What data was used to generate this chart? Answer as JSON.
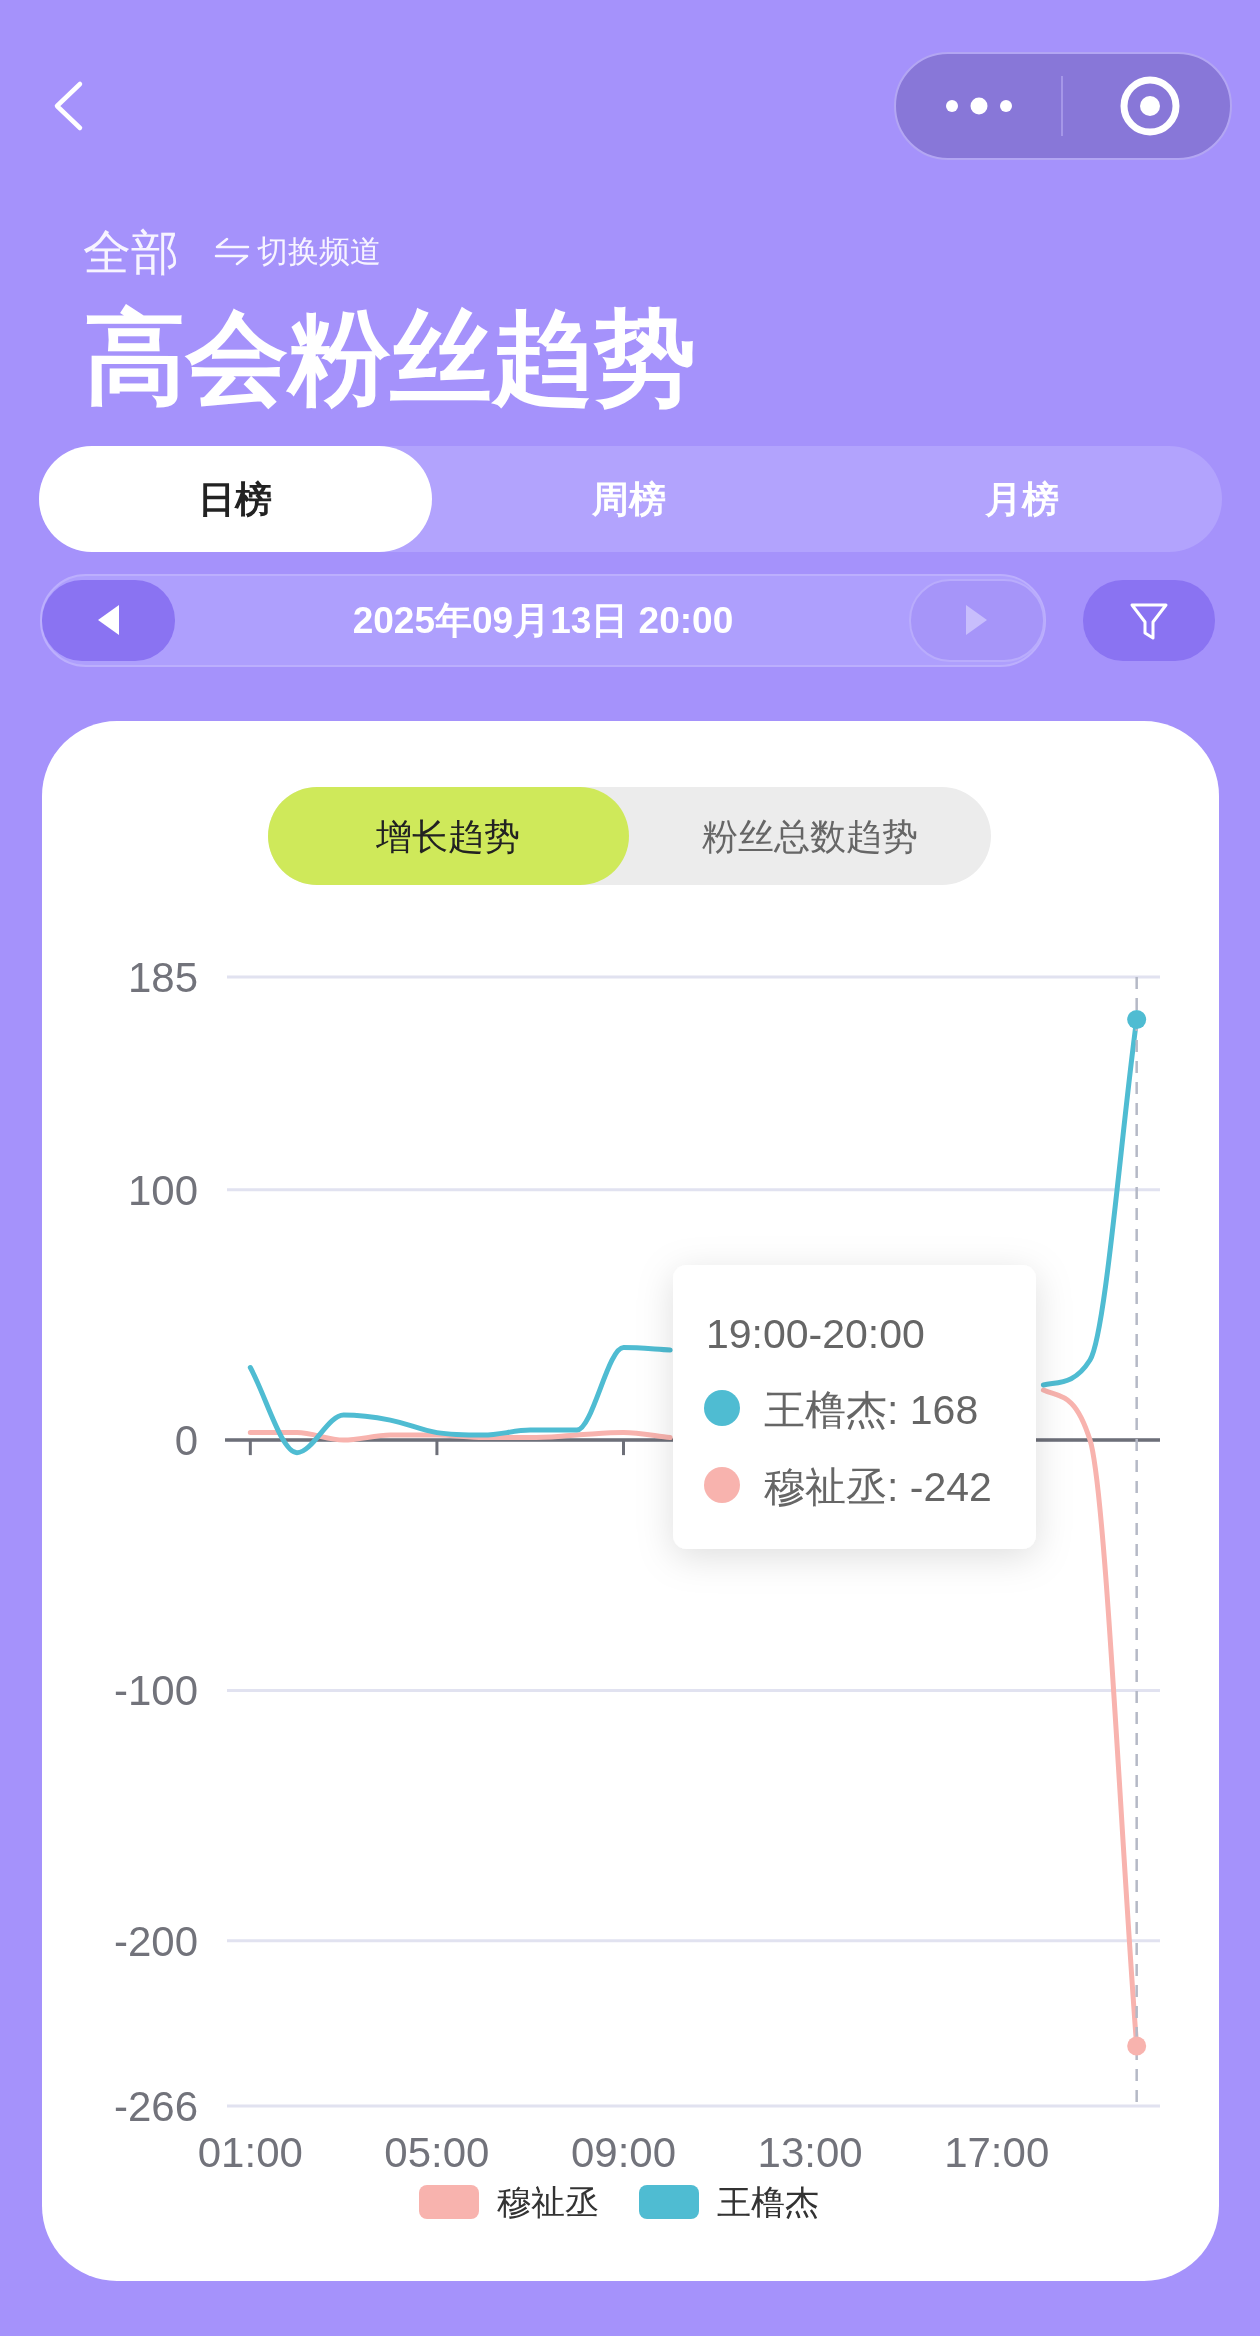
{
  "chart_data": {
    "type": "line",
    "title": "高会粉丝趋势",
    "subtitle": "2025年09月13日 20:00",
    "annotations": [
      "全部",
      "切换频道",
      "日榜",
      "周榜",
      "月榜",
      "增长趋势",
      "粉丝总数趋势",
      "19:00-20:00",
      "王橹杰: 168",
      "穆祉丞: -242"
    ],
    "x": [
      1,
      2,
      3,
      4,
      5,
      6,
      7,
      8,
      9,
      10,
      11,
      12,
      13,
      14,
      15,
      16,
      17,
      18,
      19,
      20
    ],
    "series": [
      {
        "name": "穆祉丞",
        "color": "#f8b3ae",
        "values": [
          3,
          3,
          0,
          2,
          2,
          1,
          1,
          2,
          3,
          1,
          null,
          null,
          null,
          null,
          null,
          null,
          null,
          20,
          0,
          -242
        ]
      },
      {
        "name": "王橹杰",
        "color": "#4fbcd2",
        "values": [
          29,
          -5,
          10,
          8,
          3,
          2,
          4,
          4,
          37,
          36,
          null,
          null,
          null,
          null,
          null,
          null,
          null,
          22,
          32,
          168
        ]
      }
    ],
    "xlim": [
      0.5,
      20.5
    ],
    "xticks": [
      {
        "value": 1,
        "label": "01:00"
      },
      {
        "value": 5,
        "label": "05:00"
      },
      {
        "value": 9,
        "label": "09:00"
      },
      {
        "value": 13,
        "label": "13:00"
      },
      {
        "value": 17,
        "label": "17:00"
      }
    ],
    "ylim": [
      -266,
      185
    ],
    "yticks": [
      -266,
      -200,
      -100,
      0,
      100,
      185
    ],
    "grid": "y",
    "legend": "bottom",
    "ref_lines": [
      {
        "axis": "x",
        "value": 20,
        "color": "#b5b9c6",
        "line_style": "dashed"
      }
    ]
  }
}
